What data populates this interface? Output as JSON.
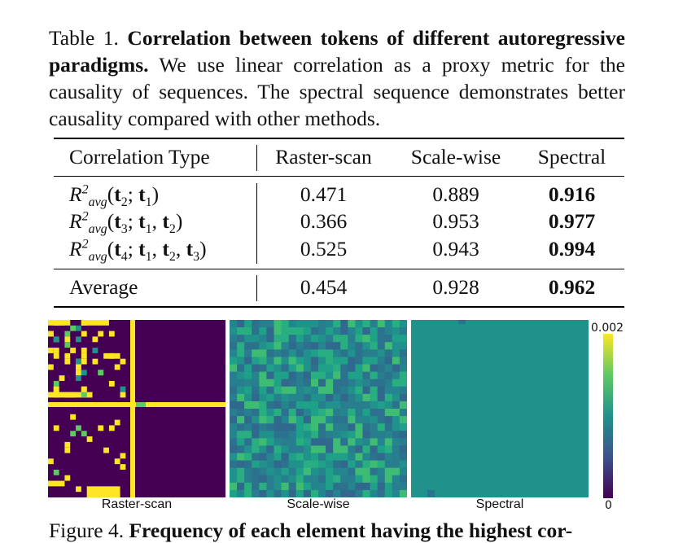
{
  "caption": {
    "label": "Table 1.",
    "title": "Correlation between tokens of different autoregressive paradigms.",
    "text": "We use linear correlation as a proxy metric for the causality of sequences. The spectral sequence demonstrates better causality compared with other methods."
  },
  "table": {
    "headers": [
      "Correlation Type",
      "Raster-scan",
      "Scale-wise",
      "Spectral"
    ],
    "rows": [
      {
        "label": "R²avg(t2; t1)",
        "values": [
          "0.471",
          "0.889",
          "0.916"
        ]
      },
      {
        "label": "R²avg(t3; t1, t2)",
        "values": [
          "0.366",
          "0.953",
          "0.977"
        ]
      },
      {
        "label": "R²avg(t4; t1, t2, t3)",
        "values": [
          "0.525",
          "0.943",
          "0.994"
        ]
      }
    ],
    "average": {
      "label": "Average",
      "values": [
        "0.454",
        "0.928",
        "0.962"
      ]
    }
  },
  "figure": {
    "panels": [
      "Raster-scan",
      "Scale-wise",
      "Spectral"
    ],
    "colorbar_max": "0.002",
    "colorbar_min": "0",
    "colormap": [
      "#440154",
      "#3b528b",
      "#21918c",
      "#5ec962",
      "#fde725"
    ]
  },
  "next_caption": "Figure 4. Frequency of each element having the highest cor-"
}
